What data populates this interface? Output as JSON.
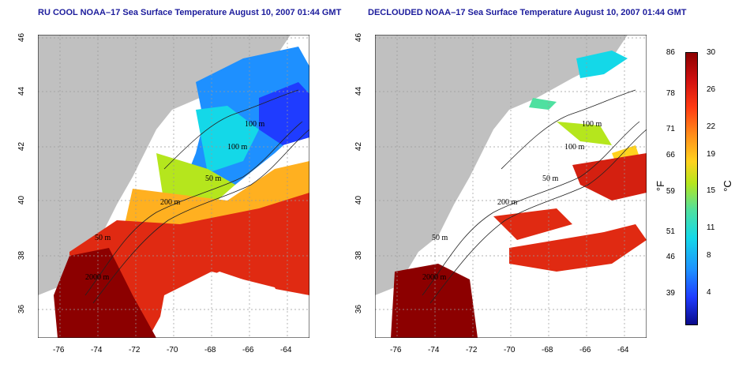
{
  "left_panel": {
    "title": "RU COOL NOAA–17 Sea Surface Temperature August 10, 2007 01:44 GMT",
    "x_ticks": [
      "-76",
      "-74",
      "-72",
      "-70",
      "-68",
      "-66",
      "-64"
    ],
    "y_ticks": [
      "46",
      "44",
      "42",
      "40",
      "38",
      "36"
    ],
    "contour_labels": [
      "100 m",
      "100 m",
      "50 m",
      "200 m",
      "50 m",
      "2000 m"
    ]
  },
  "right_panel": {
    "title": "DECLOUDED NOAA–17 Sea Surface Temperature August 10, 2007 01:44 GMT",
    "x_ticks": [
      "-76",
      "-74",
      "-72",
      "-70",
      "-68",
      "-66",
      "-64"
    ],
    "y_ticks": [
      "46",
      "44",
      "42",
      "40",
      "38",
      "36"
    ],
    "contour_labels": [
      "100 m",
      "100 m",
      "50 m",
      "200 m",
      "50 m",
      "2000 m"
    ]
  },
  "colorbar": {
    "fahrenheit_ticks": [
      "86",
      "78",
      "71",
      "66",
      "59",
      "51",
      "46",
      "39"
    ],
    "celsius_ticks": [
      "30",
      "26",
      "22",
      "19",
      "15",
      "11",
      "8",
      "4"
    ],
    "fahrenheit_unit": "°F",
    "celsius_unit": "°C"
  },
  "colors": {
    "land": "#c0c0c0",
    "title": "#1c1c9c",
    "warm": "#d42010",
    "hot": "#8c0000",
    "cool": "#1e90ff",
    "cold": "#1f3cff"
  }
}
